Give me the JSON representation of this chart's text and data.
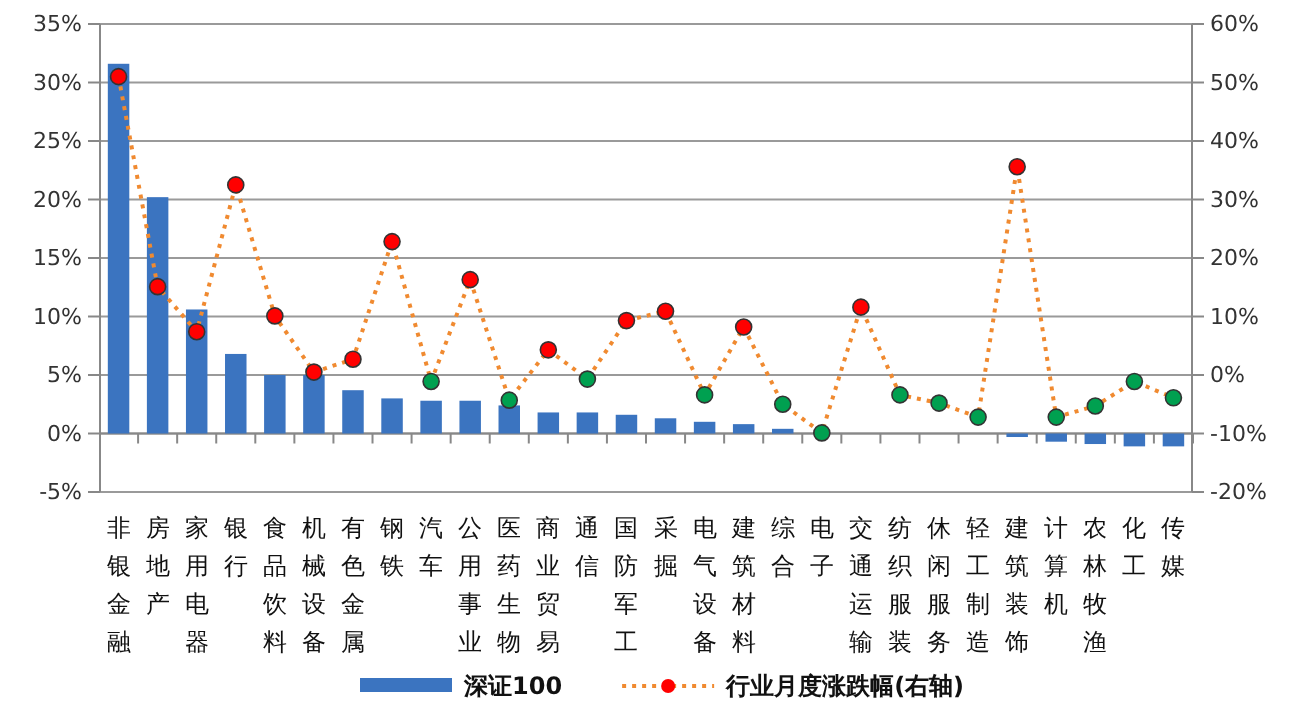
{
  "chart_data": {
    "type": "bar",
    "categories": [
      "非银金融",
      "房地产",
      "家用电器",
      "银行",
      "食品饮料",
      "机械设备",
      "有色金属",
      "钢铁",
      "汽车",
      "公用事业",
      "医药生物",
      "商业贸易",
      "通信",
      "国防军工",
      "采掘",
      "电气设备",
      "建筑材料",
      "综合",
      "电子",
      "交通运输",
      "纺织服装",
      "休闲服务",
      "轻工制造",
      "建筑装饰",
      "计算机",
      "农林牧渔",
      "化工",
      "传媒"
    ],
    "series": [
      {
        "name": "深证100",
        "color": "#3b74c0",
        "values": [
          31.6,
          20.2,
          10.6,
          6.8,
          5.0,
          5.0,
          3.7,
          3.0,
          2.8,
          2.8,
          2.4,
          1.8,
          1.8,
          1.6,
          1.3,
          1.0,
          0.8,
          0.4,
          null,
          0,
          0,
          0,
          0,
          -0.3,
          -0.7,
          -0.9,
          -1.1,
          -1.1
        ]
      },
      {
        "name": "行业月度涨跌幅(右轴)",
        "type": "line",
        "axis": "y2",
        "color": "#f08a30",
        "line_style": "dotted",
        "marker": "circle",
        "colors": [
          "#ff0000",
          "#ff0000",
          "#ff0000",
          "#ff0000",
          "#ff0000",
          "#ff0000",
          "#ff0000",
          "#ff0000",
          "#00a050",
          "#ff0000",
          "#00a050",
          "#ff0000",
          "#00a050",
          "#ff0000",
          "#ff0000",
          "#00a050",
          "#ff0000",
          "#00a050",
          "#00a050",
          "#ff0000",
          "#00a050",
          "#00a050",
          "#00a050",
          "#ff0000",
          "#00a050",
          "#00a050",
          "#00a050",
          "#00a050"
        ],
        "values": [
          51.0,
          15.1,
          7.4,
          32.5,
          10.1,
          0.5,
          2.7,
          22.8,
          -1.1,
          16.3,
          -4.3,
          4.3,
          -0.7,
          9.3,
          10.9,
          -3.4,
          8.2,
          -5.0,
          -9.9,
          11.6,
          -3.4,
          -4.8,
          -7.2,
          35.6,
          -7.2,
          -5.3,
          -1.1,
          -3.9
        ]
      }
    ],
    "ylim": [
      -5,
      35
    ],
    "yticks": [
      {
        "value": -5,
        "label": "-5%"
      },
      {
        "value": 0,
        "label": "0%"
      },
      {
        "value": 5,
        "label": "5%"
      },
      {
        "value": 10,
        "label": "10%"
      },
      {
        "value": 15,
        "label": "15%"
      },
      {
        "value": 20,
        "label": "20%"
      },
      {
        "value": 25,
        "label": "25%"
      },
      {
        "value": 30,
        "label": "30%"
      },
      {
        "value": 35,
        "label": "35%"
      }
    ],
    "y2lim": [
      -20,
      60
    ],
    "y2ticks": [
      {
        "value": -20,
        "label": "-20%"
      },
      {
        "value": -10,
        "label": "-10%"
      },
      {
        "value": 0,
        "label": "0%"
      },
      {
        "value": 10,
        "label": "10%"
      },
      {
        "value": 20,
        "label": "20%"
      },
      {
        "value": 30,
        "label": "30%"
      },
      {
        "value": 40,
        "label": "40%"
      },
      {
        "value": 50,
        "label": "50%"
      },
      {
        "value": 60,
        "label": "60%"
      }
    ],
    "grid": "y",
    "legend": "bottom"
  }
}
